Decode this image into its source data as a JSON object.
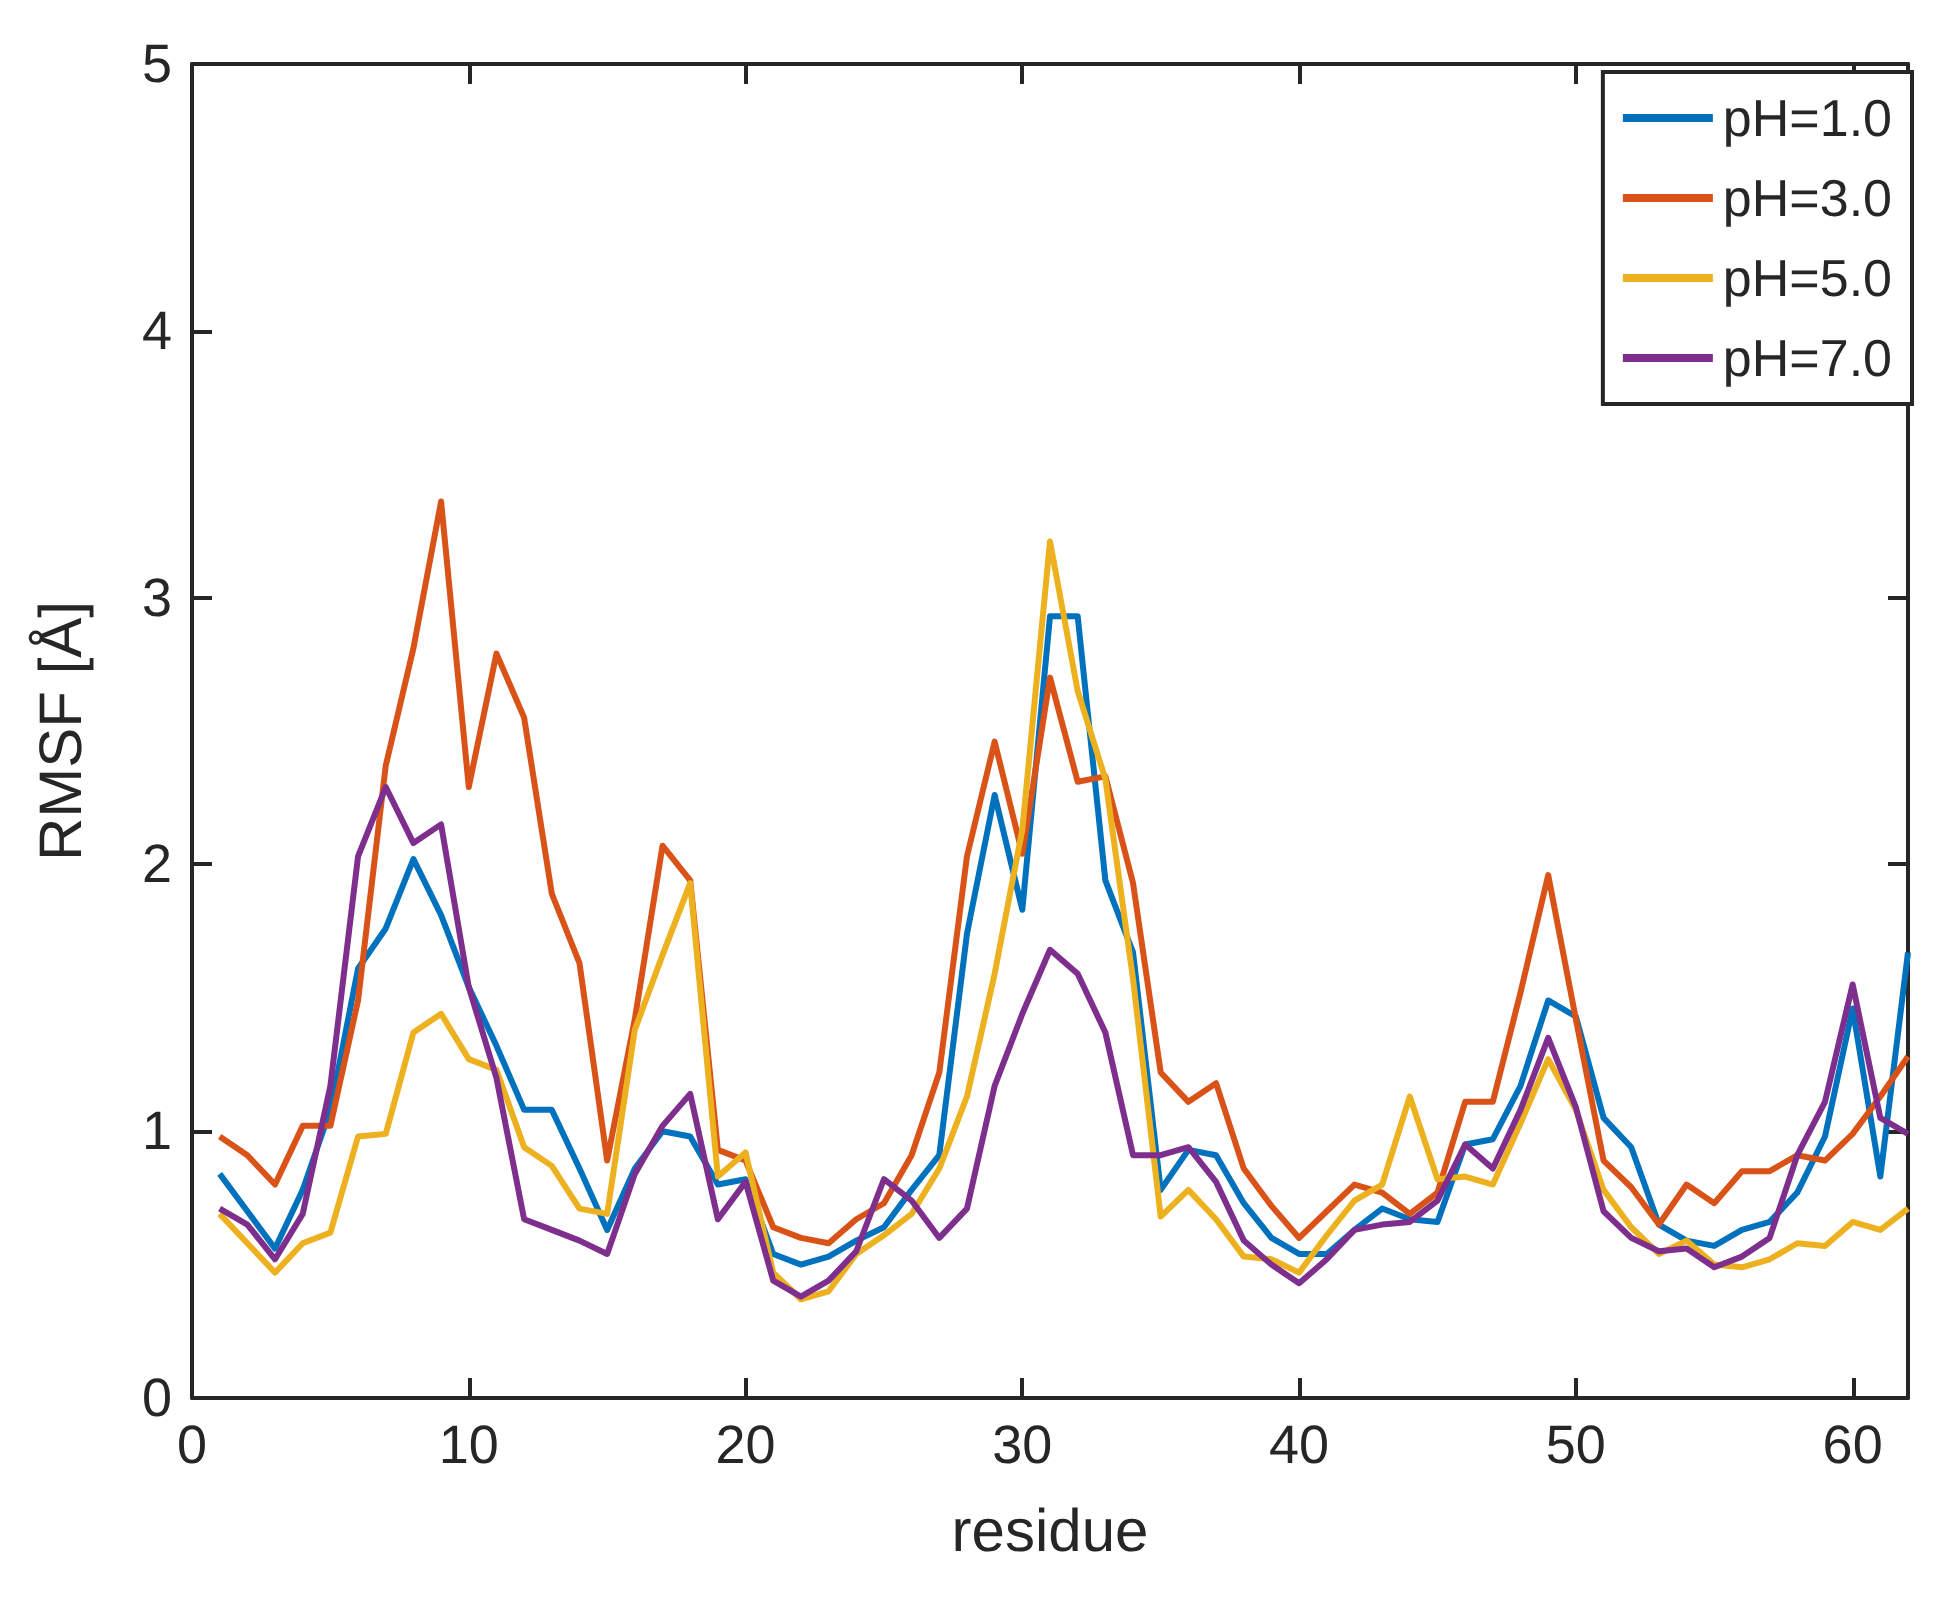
{
  "chart_data": {
    "type": "line",
    "xlabel": "residue",
    "ylabel": "RMSF [Å]",
    "x": [
      1,
      2,
      3,
      4,
      5,
      6,
      7,
      8,
      9,
      10,
      11,
      12,
      13,
      14,
      15,
      16,
      17,
      18,
      19,
      20,
      21,
      22,
      23,
      24,
      25,
      26,
      27,
      28,
      29,
      30,
      31,
      32,
      33,
      34,
      35,
      36,
      37,
      38,
      39,
      40,
      41,
      42,
      43,
      44,
      45,
      46,
      47,
      48,
      49,
      50,
      51,
      52,
      53,
      54,
      55,
      56,
      57,
      58,
      59,
      60,
      61,
      62
    ],
    "xlim": [
      0,
      62
    ],
    "xticks": [
      0,
      10,
      20,
      30,
      40,
      50,
      60
    ],
    "ylim": [
      0,
      5
    ],
    "yticks": [
      0,
      1,
      2,
      3,
      4,
      5
    ],
    "grid": false,
    "legend": "top right",
    "series": [
      {
        "name": "pH=1.0",
        "color": "#0072bd",
        "values": [
          0.84,
          0.7,
          0.56,
          0.78,
          1.08,
          1.61,
          1.76,
          2.02,
          1.81,
          1.54,
          1.32,
          1.08,
          1.08,
          0.86,
          0.63,
          0.86,
          1.0,
          0.98,
          0.8,
          0.82,
          0.54,
          0.5,
          0.53,
          0.59,
          0.64,
          0.78,
          0.91,
          1.74,
          2.26,
          1.83,
          2.93,
          2.93,
          1.94,
          1.67,
          0.78,
          0.93,
          0.91,
          0.73,
          0.6,
          0.54,
          0.54,
          0.63,
          0.71,
          0.67,
          0.66,
          0.95,
          0.97,
          1.17,
          1.49,
          1.43,
          1.05,
          0.94,
          0.65,
          0.59,
          0.57,
          0.63,
          0.66,
          0.77,
          0.98,
          1.46,
          0.83,
          1.67
        ]
      },
      {
        "name": "pH=3.0",
        "color": "#d95319",
        "values": [
          0.98,
          0.91,
          0.8,
          1.02,
          1.02,
          1.49,
          2.37,
          2.81,
          3.36,
          2.29,
          2.79,
          2.55,
          1.89,
          1.63,
          0.89,
          1.42,
          2.07,
          1.94,
          0.93,
          0.89,
          0.64,
          0.6,
          0.58,
          0.67,
          0.73,
          0.91,
          1.22,
          2.03,
          2.46,
          2.04,
          2.7,
          2.31,
          2.33,
          1.93,
          1.22,
          1.11,
          1.18,
          0.86,
          0.72,
          0.6,
          0.7,
          0.8,
          0.77,
          0.69,
          0.77,
          1.11,
          1.11,
          1.52,
          1.96,
          1.42,
          0.89,
          0.79,
          0.65,
          0.8,
          0.73,
          0.85,
          0.85,
          0.91,
          0.89,
          0.99,
          1.13,
          1.28
        ]
      },
      {
        "name": "pH=5.0",
        "color": "#edb120",
        "values": [
          0.69,
          0.58,
          0.47,
          0.58,
          0.62,
          0.98,
          0.99,
          1.37,
          1.44,
          1.27,
          1.23,
          0.94,
          0.87,
          0.71,
          0.69,
          1.38,
          1.66,
          1.93,
          0.83,
          0.92,
          0.47,
          0.37,
          0.4,
          0.54,
          0.61,
          0.69,
          0.86,
          1.13,
          1.59,
          2.13,
          3.21,
          2.65,
          2.32,
          1.57,
          0.68,
          0.78,
          0.67,
          0.53,
          0.52,
          0.47,
          0.61,
          0.74,
          0.8,
          1.13,
          0.82,
          0.83,
          0.8,
          1.03,
          1.27,
          1.08,
          0.78,
          0.64,
          0.54,
          0.59,
          0.5,
          0.49,
          0.52,
          0.58,
          0.57,
          0.66,
          0.63,
          0.71
        ]
      },
      {
        "name": "pH=7.0",
        "color": "#7e2f8e",
        "values": [
          0.71,
          0.65,
          0.52,
          0.69,
          1.17,
          2.03,
          2.29,
          2.08,
          2.15,
          1.54,
          1.2,
          0.67,
          0.63,
          0.59,
          0.54,
          0.84,
          1.02,
          1.14,
          0.67,
          0.81,
          0.44,
          0.38,
          0.44,
          0.55,
          0.82,
          0.74,
          0.6,
          0.71,
          1.17,
          1.44,
          1.68,
          1.59,
          1.37,
          0.91,
          0.91,
          0.94,
          0.81,
          0.59,
          0.5,
          0.43,
          0.52,
          0.63,
          0.65,
          0.66,
          0.74,
          0.95,
          0.86,
          1.08,
          1.35,
          1.09,
          0.7,
          0.6,
          0.55,
          0.56,
          0.49,
          0.53,
          0.6,
          0.91,
          1.11,
          1.55,
          1.05,
          0.99
        ]
      }
    ]
  }
}
